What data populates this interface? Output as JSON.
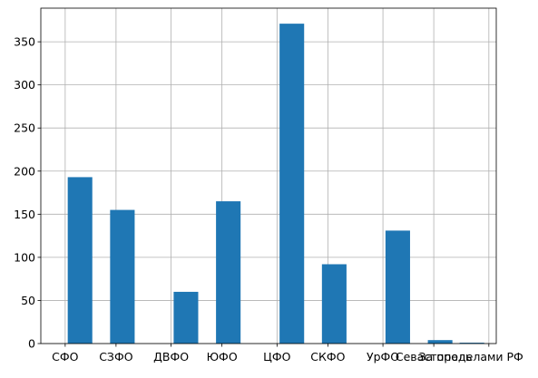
{
  "chart_data": {
    "type": "bar",
    "title": "",
    "xlabel": "",
    "ylabel": "",
    "grid": true,
    "ylim": [
      0,
      389
    ],
    "xlim": [
      -0.575,
      10.175
    ],
    "yticks": [
      0,
      50,
      100,
      150,
      200,
      250,
      300,
      350
    ],
    "bar_width": 0.58,
    "bar_color": "#1f77b4",
    "bars": [
      {
        "category": "СФО",
        "x": 0.35,
        "value": 193
      },
      {
        "category": "СЗФО",
        "x": 1.35,
        "value": 155
      },
      {
        "category": "ДВФО",
        "x": 2.85,
        "value": 60
      },
      {
        "category": "ЮФО",
        "x": 3.85,
        "value": 165
      },
      {
        "category": "ЦФО",
        "x": 5.35,
        "value": 371
      },
      {
        "category": "СКФО",
        "x": 6.35,
        "value": 92
      },
      {
        "category": "УрФО",
        "x": 7.85,
        "value": 131
      },
      {
        "category": "Севастополь",
        "x": 8.85,
        "value": 4
      },
      {
        "category": "За пределами РФ",
        "x": 9.6,
        "value": 1
      }
    ],
    "xticks": [
      {
        "label": "СФО",
        "x": 0
      },
      {
        "label": "СЗФО",
        "x": 1.2
      },
      {
        "label": "ДВФО",
        "x": 2.5
      },
      {
        "label": "ЮФО",
        "x": 3.7
      },
      {
        "label": "ЦФО",
        "x": 5
      },
      {
        "label": "СКФО",
        "x": 6.2
      },
      {
        "label": "УрФО",
        "x": 7.5
      },
      {
        "label": "Севастополь",
        "x": 8.7
      },
      {
        "label": "За пределами РФ",
        "x": 10
      }
    ]
  }
}
